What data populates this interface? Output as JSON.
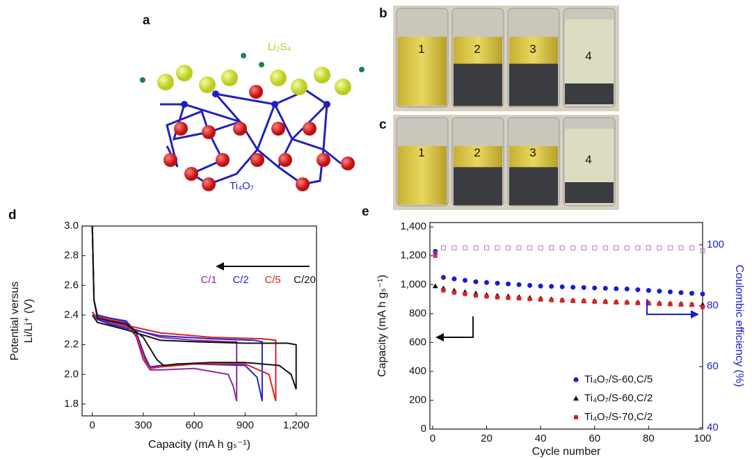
{
  "panel_a": {
    "label": "a",
    "li2s4": "Li₂S₄",
    "ti4o7": "Ti₄O₇"
  },
  "panel_b": {
    "label": "b",
    "vials": [
      "1",
      "2",
      "3",
      "4"
    ]
  },
  "panel_c": {
    "label": "c",
    "vials": [
      "1",
      "2",
      "3",
      "4"
    ]
  },
  "chart_data": [
    {
      "panel_label": "d",
      "type": "line",
      "xlabel": "Capacity (mA h gₛ⁻¹)",
      "ylabel": [
        "Potential versus",
        "Li/Li⁺ (V)"
      ],
      "xlim": [
        -60,
        1320
      ],
      "ylim": [
        1.72,
        3.0
      ],
      "xticks": [
        0,
        300,
        600,
        900,
        {
          "value": 1200,
          "label": "1,200"
        }
      ],
      "yticks": [
        1.8,
        {
          "value": 2,
          "label": "2.0"
        },
        2.2,
        2.4,
        2.6,
        2.8,
        {
          "value": 3,
          "label": "3.0"
        }
      ],
      "series": [
        {
          "name": "C/1",
          "color": "#8e2a9c",
          "x": [
            0,
            10,
            30,
            100,
            200,
            260,
            300,
            340,
            400,
            600,
            800,
            830,
            850,
            850,
            800,
            600,
            400,
            200,
            100,
            30,
            0
          ],
          "y": [
            3.0,
            2.5,
            2.4,
            2.38,
            2.35,
            2.25,
            2.1,
            2.03,
            2.03,
            2.04,
            2.0,
            1.92,
            1.82,
            2.22,
            2.22,
            2.23,
            2.25,
            2.32,
            2.35,
            2.37,
            2.42
          ]
        },
        {
          "name": "C/2",
          "color": "#2424d8",
          "x": [
            0,
            10,
            30,
            100,
            200,
            260,
            310,
            340,
            400,
            600,
            900,
            970,
            1000,
            1000,
            950,
            700,
            400,
            200,
            100,
            30,
            0
          ],
          "y": [
            3.0,
            2.5,
            2.4,
            2.38,
            2.36,
            2.28,
            2.12,
            2.05,
            2.06,
            2.07,
            2.06,
            1.98,
            1.82,
            2.22,
            2.23,
            2.24,
            2.26,
            2.31,
            2.34,
            2.37,
            2.42
          ]
        },
        {
          "name": "C/5",
          "color": "#e02020",
          "x": [
            0,
            10,
            30,
            100,
            200,
            260,
            310,
            340,
            400,
            600,
            900,
            1040,
            1080,
            1080,
            1000,
            700,
            400,
            200,
            100,
            30,
            0
          ],
          "y": [
            3.0,
            2.5,
            2.39,
            2.37,
            2.34,
            2.26,
            2.1,
            2.04,
            2.05,
            2.07,
            2.07,
            2.0,
            1.82,
            2.23,
            2.24,
            2.25,
            2.28,
            2.33,
            2.36,
            2.38,
            2.42
          ]
        },
        {
          "name": "C/20",
          "color": "#111111",
          "x": [
            0,
            10,
            30,
            100,
            200,
            300,
            380,
            420,
            500,
            700,
            900,
            1100,
            1170,
            1200,
            1200,
            1150,
            900,
            600,
            400,
            200,
            100,
            30,
            0
          ],
          "y": [
            3.0,
            2.5,
            2.38,
            2.36,
            2.34,
            2.25,
            2.1,
            2.06,
            2.07,
            2.08,
            2.08,
            2.06,
            2.0,
            1.9,
            2.2,
            2.21,
            2.21,
            2.22,
            2.23,
            2.3,
            2.33,
            2.35,
            2.4
          ]
        }
      ]
    },
    {
      "panel_label": "e",
      "type": "scatter",
      "xlabel": "Cycle number",
      "ylabel": "Capacity (mA h gₛ⁻¹)",
      "y2label": "Coulombic efficiency (%)",
      "xlim": [
        -1,
        100
      ],
      "ylim": [
        0,
        1430
      ],
      "y2lim": [
        39.5,
        107.3
      ],
      "xticks": [
        0,
        20,
        40,
        60,
        80,
        100
      ],
      "yticks": [
        0,
        200,
        400,
        600,
        800,
        {
          "value": 1000,
          "label": "1,000"
        },
        {
          "value": 1200,
          "label": "1,200"
        },
        {
          "value": 1400,
          "label": "1,400"
        }
      ],
      "y2ticks": [
        40,
        60,
        80,
        100
      ],
      "x": [
        1,
        4,
        8,
        12,
        16,
        20,
        24,
        28,
        32,
        36,
        40,
        44,
        48,
        52,
        56,
        60,
        64,
        68,
        72,
        76,
        80,
        84,
        88,
        92,
        96,
        100
      ],
      "series": [
        {
          "name": "Ti₄O₇/S-60,C/5",
          "color": "#1a1ad8",
          "marker": "circle",
          "values": [
            1230,
            1050,
            1040,
            1030,
            1020,
            1015,
            1010,
            1005,
            1000,
            995,
            990,
            988,
            985,
            982,
            980,
            977,
            975,
            972,
            970,
            965,
            960,
            955,
            950,
            945,
            940,
            935
          ]
        },
        {
          "name": "Ti₄O₇/S-60,C/2",
          "color": "#111111",
          "marker": "triangle",
          "values": [
            990,
            975,
            960,
            950,
            940,
            930,
            925,
            920,
            915,
            910,
            905,
            900,
            895,
            892,
            890,
            888,
            885,
            882,
            880,
            878,
            875,
            872,
            870,
            868,
            865,
            862
          ]
        },
        {
          "name": "Ti₄O₇/S-70,C/2",
          "color": "#e02020",
          "marker": "square",
          "values": [
            1200,
            960,
            945,
            935,
            925,
            918,
            912,
            908,
            905,
            900,
            897,
            893,
            890,
            887,
            885,
            882,
            880,
            877,
            875,
            872,
            870,
            867,
            865,
            862,
            860,
            845
          ]
        },
        {
          "color": "#c070c8",
          "marker": "open-square",
          "axis": "y2",
          "values": [
            97,
            99,
            99,
            99,
            99,
            99,
            99,
            99,
            99,
            99,
            99,
            99,
            99,
            99,
            99,
            99,
            99,
            99,
            99,
            99,
            99,
            99,
            99,
            99,
            99,
            98
          ]
        }
      ]
    }
  ]
}
